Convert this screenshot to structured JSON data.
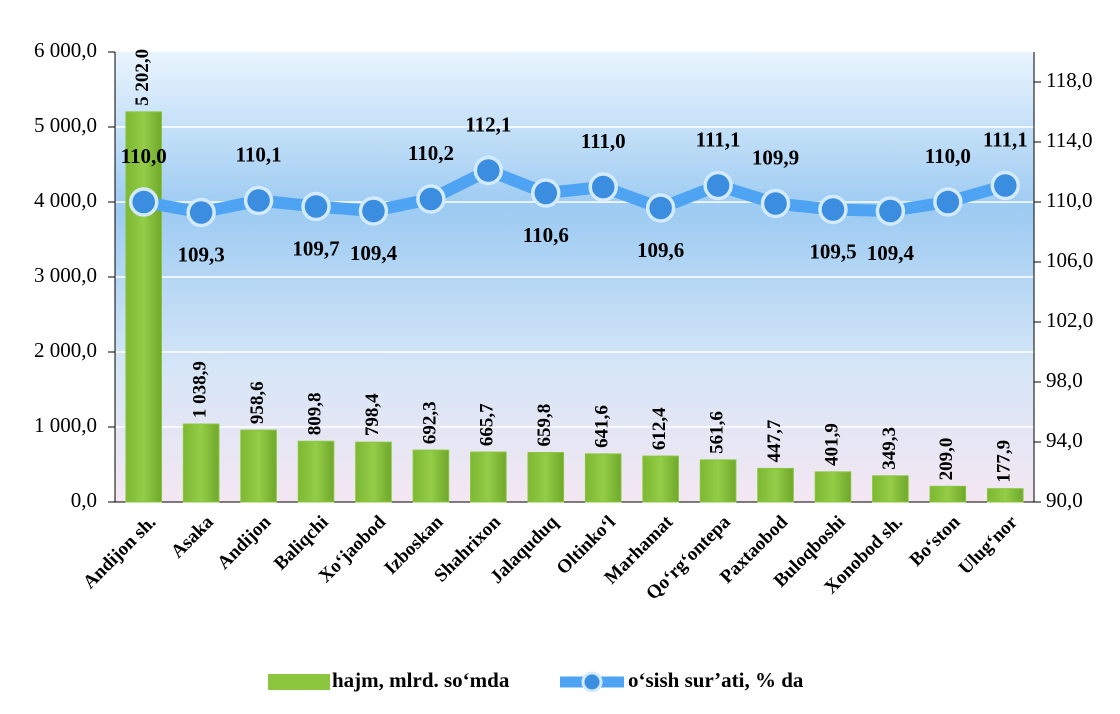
{
  "chart_data": {
    "type": "bar",
    "categories": [
      "Andijon sh.",
      "Asaka",
      "Andijon",
      "Baliqchi",
      "Xo‘jaobod",
      "Izboskan",
      "Shahrixon",
      "Jalaquduq",
      "Oltinko‘l",
      "Marhamat",
      "Qo‘rg‘ontepa",
      "Paxtaobod",
      "Buloqboshi",
      "Xonobod sh.",
      "Bo‘ston",
      "Ulug‘nor"
    ],
    "series": [
      {
        "name": "hajm, mlrd. so‘mda",
        "type": "bar",
        "color": "#8cc63f",
        "values": [
          5202.0,
          1038.9,
          958.6,
          809.8,
          798.4,
          692.3,
          665.7,
          659.8,
          641.6,
          612.4,
          561.6,
          447.7,
          401.9,
          349.3,
          209.0,
          177.9
        ],
        "value_labels": [
          "5 202,0",
          "1 038,9",
          "958,6",
          "809,8",
          "798,4",
          "692,3",
          "665,7",
          "659,8",
          "641,6",
          "612,4",
          "561,6",
          "447,7",
          "401,9",
          "349,3",
          "209,0",
          "177,9"
        ]
      },
      {
        "name": "o‘sish sur’ati, % da",
        "type": "line",
        "axis": "y2",
        "color": "#4ea3f2",
        "values": [
          110.0,
          109.3,
          110.1,
          109.7,
          109.4,
          110.2,
          112.1,
          110.6,
          111.0,
          109.6,
          111.1,
          109.9,
          109.5,
          109.4,
          110.0,
          111.1
        ],
        "value_labels": [
          "110,0",
          "109,3",
          "110,1",
          "109,7",
          "109,4",
          "110,2",
          "112,1",
          "110,6",
          "111,0",
          "109,6",
          "111,1",
          "109,9",
          "109,5",
          "109,4",
          "110,0",
          "111,1"
        ]
      }
    ],
    "ylim": [
      0,
      6000
    ],
    "yticks": [
      {
        "value": 0,
        "label": "0,0"
      },
      {
        "value": 1000,
        "label": "1 000,0"
      },
      {
        "value": 2000,
        "label": "2 000,0"
      },
      {
        "value": 3000,
        "label": "3 000,0"
      },
      {
        "value": 4000,
        "label": "4 000,0"
      },
      {
        "value": 5000,
        "label": "5 000,0"
      },
      {
        "value": 6000,
        "label": "6 000,0"
      }
    ],
    "y2lim": [
      90,
      120
    ],
    "y2ticks": [
      {
        "value": 90,
        "label": "90,0"
      },
      {
        "value": 94,
        "label": "94,0"
      },
      {
        "value": 98,
        "label": "98,0"
      },
      {
        "value": 102,
        "label": "102,0"
      },
      {
        "value": 106,
        "label": "106,0"
      },
      {
        "value": 110,
        "label": "110,0"
      },
      {
        "value": 114,
        "label": "114,0"
      },
      {
        "value": 118,
        "label": "118,0"
      }
    ],
    "grid": true,
    "legend": "bottom"
  }
}
